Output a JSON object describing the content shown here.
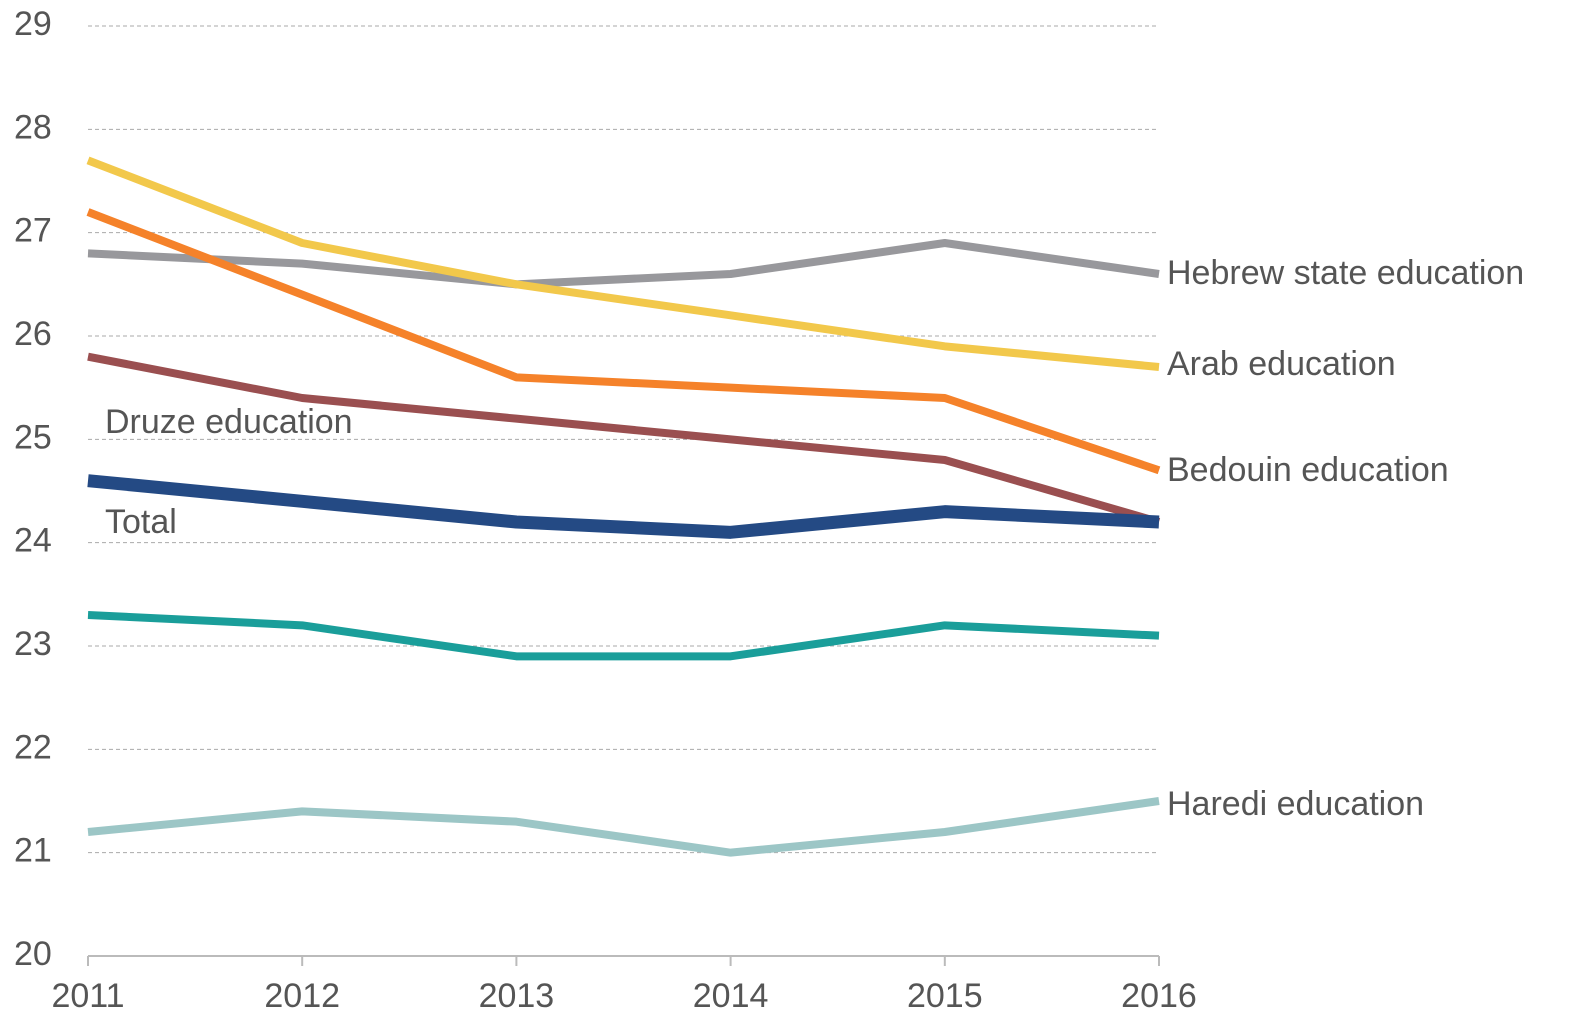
{
  "chart_data": {
    "type": "line",
    "categories": [
      "2011",
      "2012",
      "2013",
      "2014",
      "2015",
      "2016"
    ],
    "series": [
      {
        "name": "Hebrew state education",
        "color": "#98989c",
        "values": [
          26.8,
          26.7,
          26.5,
          26.6,
          26.9,
          26.6
        ]
      },
      {
        "name": "Arab education",
        "color": "#f2c84b",
        "values": [
          27.7,
          26.9,
          26.5,
          26.2,
          25.9,
          25.7
        ]
      },
      {
        "name": "Bedouin education",
        "color": "#f5822a",
        "values": [
          27.2,
          26.4,
          25.6,
          25.5,
          25.4,
          24.7
        ]
      },
      {
        "name": "Druze education",
        "color": "#9a4f50",
        "values": [
          25.8,
          25.4,
          25.2,
          25.0,
          24.8,
          24.2
        ]
      },
      {
        "name": "Total",
        "color": "#244a84",
        "values": [
          24.6,
          24.4,
          24.2,
          24.1,
          24.3,
          24.2
        ]
      },
      {
        "color": "#1a9e9a",
        "values": [
          23.3,
          23.2,
          22.9,
          22.9,
          23.2,
          23.1
        ]
      },
      {
        "name": "Haredi education",
        "color": "#9cc6c6",
        "values": [
          21.2,
          21.4,
          21.3,
          21.0,
          21.2,
          21.5
        ]
      }
    ],
    "ylim": [
      20,
      29
    ],
    "yticks": [
      20,
      21,
      22,
      23,
      24,
      25,
      26,
      27,
      28,
      29
    ],
    "grid": true
  }
}
